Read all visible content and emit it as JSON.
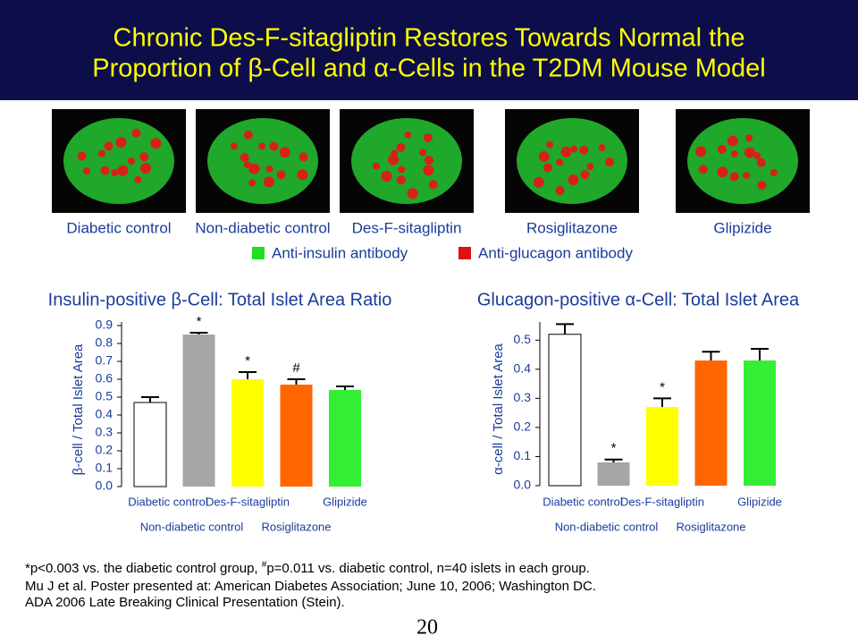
{
  "title": [
    "Chronic Des-F-sitagliptin Restores Towards Normal the",
    "Proportion of β-Cell and α-Cells in the T2DM Mouse Model"
  ],
  "image_labels": [
    "Diabetic control",
    "Non-diabetic control",
    "Des-F-sitagliptin",
    "Rosiglitazone",
    "Glipizide"
  ],
  "legend": [
    {
      "label": "Anti-insulin antibody",
      "color": "#22dd22"
    },
    {
      "label": "Anti-glucagon antibody",
      "color": "#dd1111"
    }
  ],
  "chart_data": [
    {
      "type": "bar",
      "title": "Insulin-positive β-Cell: Total Islet Area Ratio",
      "y_label": "β-cell / Total Islet Area",
      "categories": [
        "Diabetic control",
        "Non-diabetic control",
        "Des-F-sitagliptin",
        "Rosiglitazone",
        "Glipizide"
      ],
      "values": [
        0.47,
        0.85,
        0.6,
        0.57,
        0.54
      ],
      "errors": [
        0.03,
        0.01,
        0.04,
        0.03,
        0.02
      ],
      "markers": [
        null,
        "*",
        "*",
        "#",
        null
      ],
      "colors": [
        "#ffffff",
        "#a6a6a6",
        "#ffff00",
        "#ff6600",
        "#33ee33"
      ],
      "ylim": [
        0,
        0.9
      ],
      "yticks": [
        {
          "value": 0,
          "label": "0.0"
        },
        0.1,
        0.2,
        0.3,
        0.4,
        0.5,
        0.6,
        0.7,
        0.8,
        0.9
      ]
    },
    {
      "type": "bar",
      "title": "Glucagon-positive α-Cell: Total Islet Area",
      "y_label": "α-cell / Total Islet Area",
      "categories": [
        "Diabetic control",
        "Non-diabetic control",
        "Des-F-sitagliptin",
        "Rosiglitazone",
        "Glipizide"
      ],
      "values": [
        0.52,
        0.08,
        0.27,
        0.43,
        0.43
      ],
      "errors": [
        0.035,
        0.01,
        0.03,
        0.03,
        0.04
      ],
      "markers": [
        null,
        "*",
        "*",
        null,
        null
      ],
      "colors": [
        "#ffffff",
        "#a6a6a6",
        "#ffff00",
        "#ff6600",
        "#33ee33"
      ],
      "ylim": [
        0,
        0.55
      ],
      "yticks": [
        {
          "value": 0,
          "label": "0.0"
        },
        0.1,
        0.2,
        0.3,
        0.4,
        0.5
      ]
    }
  ],
  "significance_note": {
    "before": "*p<0.003 vs. the diabetic control group, ",
    "sup": "#",
    "after": "p=0.011 vs. diabetic control, n=40 islets in each group."
  },
  "references": [
    "Mu J et al. Poster presented at: American Diabetes Association; June 10, 2006; Washington DC.",
    "ADA 2006 Late Breaking Clinical Presentation (Stein)."
  ],
  "page_number": "20"
}
